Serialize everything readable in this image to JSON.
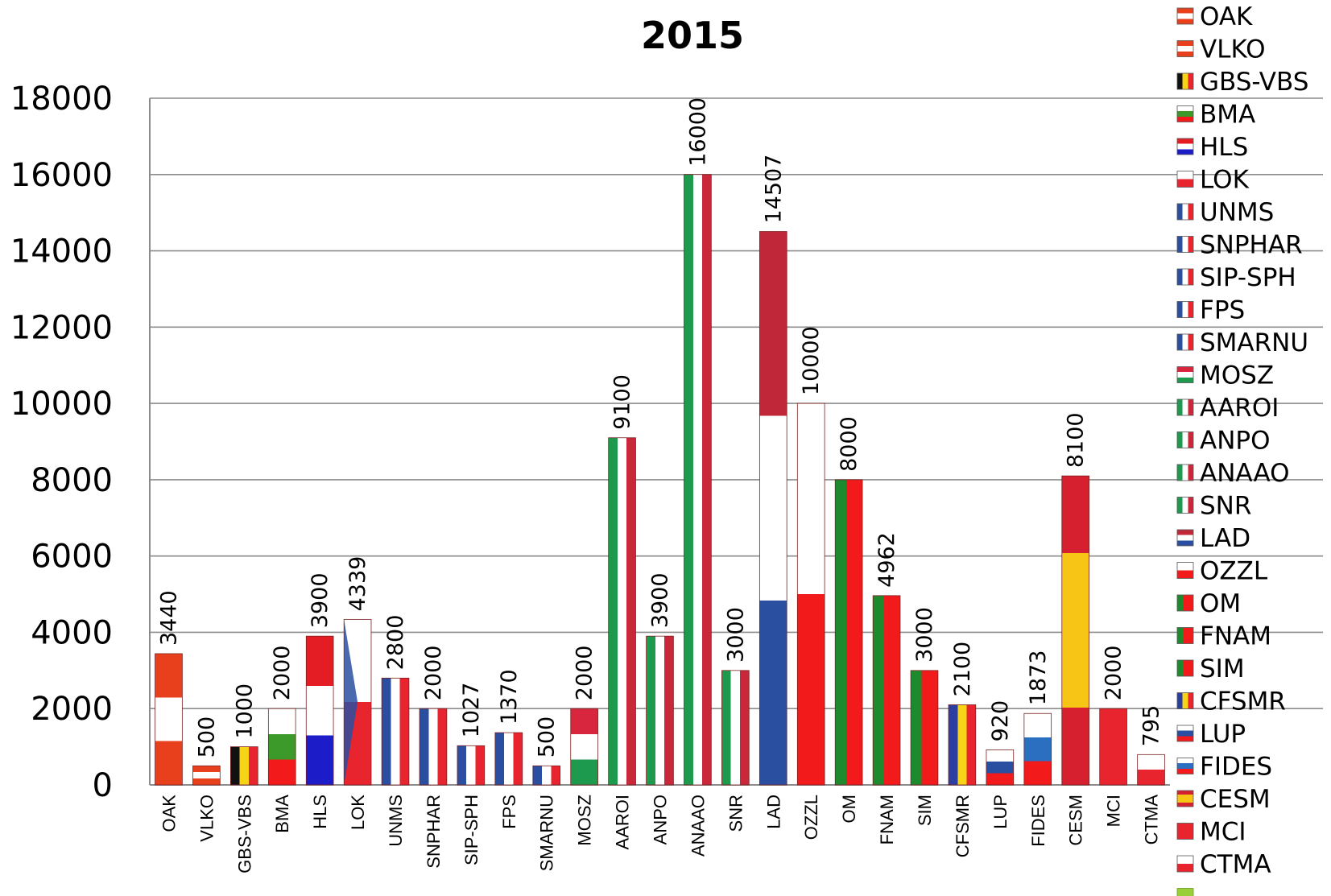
{
  "chart_data": {
    "type": "bar",
    "title": "2015",
    "xlabel": "",
    "ylabel": "",
    "ylim": [
      0,
      18000
    ],
    "yticks": [
      0,
      2000,
      4000,
      6000,
      8000,
      10000,
      12000,
      14000,
      16000,
      18000
    ],
    "grid": true,
    "legend_position": "right",
    "categories": [
      "OAK",
      "VLKO",
      "GBS-VBS",
      "BMA",
      "HLS",
      "LOK",
      "UNMS",
      "SNPHAR",
      "SIP-SPH",
      "FPS",
      "SMARNU",
      "MOSZ",
      "AAROI",
      "ANPO",
      "ANAAO",
      "SNR",
      "LAD",
      "OZZL",
      "OM",
      "FNAM",
      "SIM",
      "CFSMR",
      "LUP",
      "FIDES",
      "CESM",
      "MCI",
      "CTMA"
    ],
    "values": [
      3440,
      500,
      1000,
      2000,
      3900,
      4339,
      2800,
      2000,
      1027,
      1370,
      500,
      2000,
      9100,
      3900,
      16000,
      3000,
      14507,
      10000,
      8000,
      4962,
      3000,
      2100,
      920,
      1873,
      8100,
      2000,
      795
    ],
    "data_labels": [
      "3440",
      "500",
      "1000",
      "2000",
      "3900",
      "4339",
      "2800",
      "2000",
      "1027",
      "1370",
      "500",
      "2000",
      "9100",
      "3900",
      "16000",
      "3000",
      "14507",
      "10000",
      "8000",
      "4962",
      "3000",
      "2100",
      "920",
      "1873",
      "8100",
      "2000",
      "795"
    ],
    "bar_fills": [
      {
        "dir": "h",
        "colors": [
          "#e8401c",
          "#ffffff",
          "#e8401c"
        ]
      },
      {
        "dir": "h",
        "colors": [
          "#e8401c",
          "#ffffff",
          "#e8401c"
        ]
      },
      {
        "dir": "v",
        "colors": [
          "#111111",
          "#f7d417",
          "#e8252f"
        ]
      },
      {
        "dir": "h",
        "colors": [
          "#ffffff",
          "#3b9a2a",
          "#f21a1a"
        ]
      },
      {
        "dir": "h",
        "colors": [
          "#e41c23",
          "#ffffff",
          "#1c1cc8"
        ]
      },
      {
        "dir": "lok",
        "colors": [
          "#ffffff",
          "#e8252f",
          "#2a4fa0"
        ]
      },
      {
        "dir": "v",
        "colors": [
          "#2a4fa0",
          "#ffffff",
          "#e8252f"
        ]
      },
      {
        "dir": "v",
        "colors": [
          "#2a4fa0",
          "#ffffff",
          "#e8252f"
        ]
      },
      {
        "dir": "v",
        "colors": [
          "#2a4fa0",
          "#ffffff",
          "#e8252f"
        ]
      },
      {
        "dir": "v",
        "colors": [
          "#2a4fa0",
          "#ffffff",
          "#e8252f"
        ]
      },
      {
        "dir": "v",
        "colors": [
          "#2a4fa0",
          "#ffffff",
          "#e8252f"
        ]
      },
      {
        "dir": "h",
        "colors": [
          "#d7263d",
          "#ffffff",
          "#1e9a4f"
        ]
      },
      {
        "dir": "v",
        "colors": [
          "#1e9a4f",
          "#ffffff",
          "#c8283a"
        ]
      },
      {
        "dir": "v",
        "colors": [
          "#1e9a4f",
          "#ffffff",
          "#c8283a"
        ]
      },
      {
        "dir": "v",
        "colors": [
          "#1e9a4f",
          "#ffffff",
          "#c8283a"
        ]
      },
      {
        "dir": "v",
        "colors": [
          "#1e9a4f",
          "#ffffff",
          "#c8283a"
        ]
      },
      {
        "dir": "h",
        "colors": [
          "#c0283a",
          "#ffffff",
          "#2a4fa0"
        ]
      },
      {
        "dir": "h",
        "colors": [
          "#ffffff",
          "#f21a1a"
        ]
      },
      {
        "dir": "pt",
        "colors": [
          "#1e8a2e",
          "#f21a1a"
        ]
      },
      {
        "dir": "pt",
        "colors": [
          "#1e8a2e",
          "#f21a1a"
        ]
      },
      {
        "dir": "pt",
        "colors": [
          "#1e8a2e",
          "#f21a1a"
        ]
      },
      {
        "dir": "v",
        "colors": [
          "#2a3fa0",
          "#f7d417",
          "#e8252f"
        ]
      },
      {
        "dir": "h",
        "colors": [
          "#ffffff",
          "#2a4fa0",
          "#f21a1a"
        ]
      },
      {
        "dir": "h",
        "colors": [
          "#ffffff",
          "#2a6fc0",
          "#f21a1a"
        ]
      },
      {
        "dir": "es",
        "colors": [
          "#d6202f",
          "#f7c515",
          "#d6202f"
        ]
      },
      {
        "dir": "h",
        "colors": [
          "#e8252f"
        ]
      },
      {
        "dir": "h",
        "colors": [
          "#ffffff",
          "#e8252f"
        ]
      }
    ],
    "legend": [
      "OAK",
      "VLKO",
      "GBS-VBS",
      "BMA",
      "HLS",
      "LOK",
      "UNMS",
      "SNPHAR",
      "SIP-SPH",
      "FPS",
      "SMARNU",
      "MOSZ",
      "AAROI",
      "ANPO",
      "ANAAO",
      "SNR",
      "LAD",
      "OZZL",
      "OM",
      "FNAM",
      "SIM",
      "CFSMR",
      "LUP",
      "FIDES",
      "CESM",
      "MCI",
      "CTMA",
      ""
    ]
  }
}
